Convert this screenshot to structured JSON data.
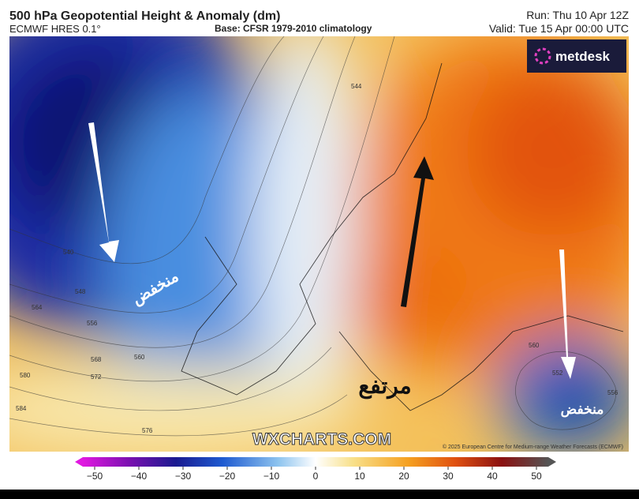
{
  "header": {
    "title": "500 hPa Geopotential Height & Anomaly (dm)",
    "model": "ECMWF HRES 0.1°",
    "base": "Base: CFSR 1979-2010 climatology",
    "run": "Run: Thu 10 Apr 12Z",
    "valid": "Valid: Tue 15 Apr 00:00 UTC"
  },
  "logo": "metdesk",
  "map": {
    "annotations": [
      "منخفض",
      "مرتفع",
      "منخفض"
    ],
    "contour_labels": [
      "540",
      "548",
      "556",
      "564",
      "568",
      "572",
      "576",
      "580",
      "584",
      "560",
      "544",
      "552",
      "556",
      "560"
    ],
    "watermark": "WXCHARTS.COM",
    "credit": "© 2025 European Centre for Medium-range Weather Forecasts (ECMWF)"
  },
  "colorbar": {
    "ticks": [
      "−50",
      "−40",
      "−30",
      "−20",
      "−10",
      "0",
      "10",
      "20",
      "30",
      "40",
      "50"
    ]
  }
}
